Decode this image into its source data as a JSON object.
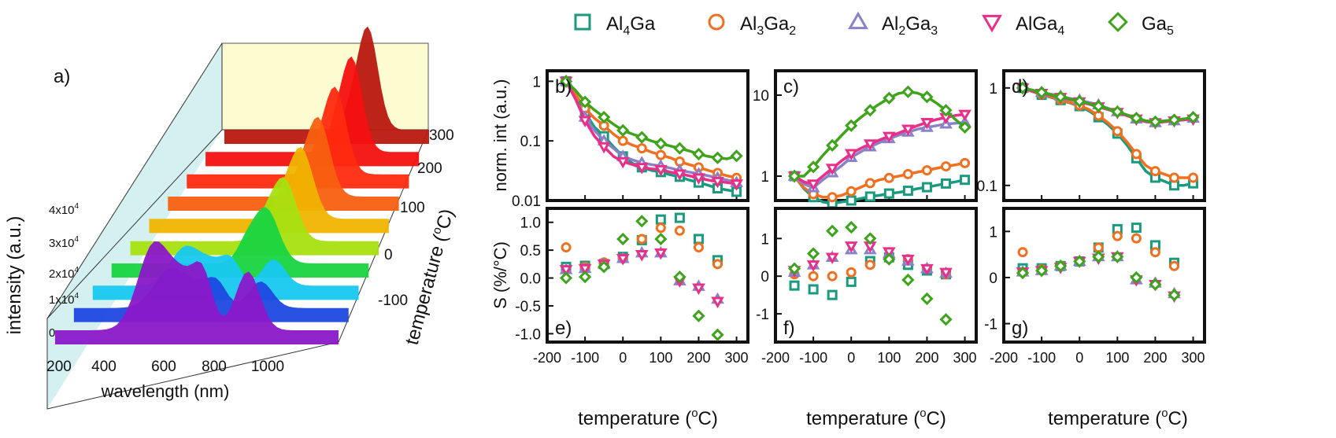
{
  "legend": {
    "placement": "top",
    "entries": [
      {
        "key": "Al4Ga",
        "base": "Al",
        "parts": [
          [
            "Al",
            ""
          ],
          [
            "4",
            "sub"
          ],
          [
            "Ga",
            ""
          ]
        ],
        "marker": "square",
        "color": "#1a9a7e"
      },
      {
        "key": "Al3Ga2",
        "parts": [
          [
            "Al",
            ""
          ],
          [
            "3",
            "sub"
          ],
          [
            "Ga",
            ""
          ],
          [
            "2",
            "sub"
          ]
        ],
        "marker": "circle",
        "color": "#f07020"
      },
      {
        "key": "Al2Ga3",
        "parts": [
          [
            "Al",
            ""
          ],
          [
            "2",
            "sub"
          ],
          [
            "Ga",
            ""
          ],
          [
            "3",
            "sub"
          ]
        ],
        "marker": "triangle-up",
        "color": "#8a82c8"
      },
      {
        "key": "AlGa4",
        "parts": [
          [
            "AlGa",
            ""
          ],
          [
            "4",
            "sub"
          ]
        ],
        "marker": "triangle-down",
        "color": "#e8308a"
      },
      {
        "key": "Ga5",
        "parts": [
          [
            "Ga",
            ""
          ],
          [
            "5",
            "sub"
          ]
        ],
        "marker": "diamond",
        "color": "#3ea41c"
      }
    ]
  },
  "panel_a": {
    "letter": "a)",
    "xlabel": "wavelength (nm)",
    "ylabel": "intensity (a.u.)",
    "zlabel_main": "temperature (",
    "zlabel_sup": "o",
    "zlabel_end": "C)",
    "xticks": [
      "200",
      "400",
      "600",
      "800",
      "1000"
    ],
    "yticks": [
      {
        "base": "0",
        "exp": ""
      },
      {
        "base": "1x10",
        "exp": "4"
      },
      {
        "base": "2x10",
        "exp": "4"
      },
      {
        "base": "3x10",
        "exp": "4"
      },
      {
        "base": "4x10",
        "exp": "4"
      }
    ],
    "zticks": [
      "-100",
      "0",
      "100",
      "200",
      "300"
    ]
  },
  "panels_top_ylabel": "norm. int (a.u.)",
  "panels_bottom_ylabel": "S (%/°C)",
  "xlabel": {
    "main": "temperature (",
    "sup": "o",
    "end": "C)"
  },
  "chart_data": [
    {
      "panel": "b)",
      "type": "line",
      "yscale": "log",
      "xlim": [
        -200,
        330
      ],
      "ylim": [
        0.01,
        1.5
      ],
      "yticks": [
        "0.01",
        "0.1",
        "1"
      ],
      "x": [
        -150,
        -125,
        -100,
        -75,
        -50,
        -25,
        0,
        25,
        50,
        75,
        100,
        125,
        150,
        175,
        200,
        225,
        250,
        275,
        300
      ],
      "series": [
        {
          "name": "Al4Ga",
          "values": [
            1.0,
            0.55,
            0.3,
            0.17,
            0.12,
            0.08,
            0.055,
            0.042,
            0.036,
            0.032,
            0.03,
            0.027,
            0.025,
            0.022,
            0.02,
            0.018,
            0.016,
            0.015,
            0.014
          ]
        },
        {
          "name": "Al3Ga2",
          "values": [
            1.0,
            0.6,
            0.35,
            0.24,
            0.18,
            0.13,
            0.1,
            0.085,
            0.075,
            0.065,
            0.058,
            0.052,
            0.045,
            0.04,
            0.036,
            0.032,
            0.029,
            0.026,
            0.024
          ]
        },
        {
          "name": "Al2Ga3",
          "values": [
            1.0,
            0.5,
            0.25,
            0.15,
            0.1,
            0.075,
            0.055,
            0.048,
            0.043,
            0.04,
            0.038,
            0.035,
            0.032,
            0.03,
            0.028,
            0.026,
            0.024,
            0.022,
            0.02
          ]
        },
        {
          "name": "AlGa4",
          "values": [
            1.0,
            0.5,
            0.22,
            0.12,
            0.08,
            0.055,
            0.045,
            0.04,
            0.036,
            0.034,
            0.033,
            0.03,
            0.028,
            0.026,
            0.024,
            0.022,
            0.021,
            0.02,
            0.019
          ]
        },
        {
          "name": "Ga5",
          "values": [
            1.0,
            0.7,
            0.45,
            0.33,
            0.25,
            0.19,
            0.15,
            0.13,
            0.115,
            0.1,
            0.09,
            0.082,
            0.075,
            0.068,
            0.06,
            0.055,
            0.052,
            0.05,
            0.056
          ]
        }
      ]
    },
    {
      "panel": "c)",
      "type": "line",
      "yscale": "log",
      "xlim": [
        -200,
        330
      ],
      "ylim": [
        0.5,
        20
      ],
      "yticks": [
        "1",
        "10"
      ],
      "x": [
        -150,
        -125,
        -100,
        -75,
        -50,
        -25,
        0,
        25,
        50,
        75,
        100,
        125,
        150,
        175,
        200,
        225,
        250,
        275,
        300
      ],
      "series": [
        {
          "name": "Al4Ga",
          "values": [
            1.0,
            0.7,
            0.55,
            0.48,
            0.46,
            0.48,
            0.5,
            0.53,
            0.56,
            0.58,
            0.61,
            0.63,
            0.66,
            0.7,
            0.73,
            0.77,
            0.81,
            0.85,
            0.9
          ]
        },
        {
          "name": "Al3Ga2",
          "values": [
            1.0,
            0.72,
            0.6,
            0.55,
            0.55,
            0.58,
            0.65,
            0.73,
            0.82,
            0.9,
            0.95,
            1.0,
            1.06,
            1.12,
            1.18,
            1.25,
            1.32,
            1.38,
            1.45
          ]
        },
        {
          "name": "Al2Ga3",
          "values": [
            1.0,
            0.8,
            0.72,
            0.9,
            1.1,
            1.35,
            1.7,
            2.0,
            2.3,
            2.6,
            2.9,
            3.2,
            3.5,
            3.8,
            4.0,
            4.2,
            4.4,
            4.5,
            4.6
          ]
        },
        {
          "name": "AlGa4",
          "values": [
            1.0,
            0.85,
            0.8,
            1.0,
            1.25,
            1.55,
            1.9,
            2.2,
            2.5,
            2.8,
            3.1,
            3.4,
            3.8,
            4.2,
            4.6,
            5.0,
            5.3,
            5.6,
            5.8
          ]
        },
        {
          "name": "Ga5",
          "values": [
            1.0,
            1.0,
            1.3,
            1.8,
            2.4,
            3.2,
            4.2,
            5.3,
            6.5,
            7.8,
            9.2,
            10.5,
            11.0,
            10.6,
            9.5,
            8.0,
            6.5,
            5.0,
            4.0
          ]
        }
      ]
    },
    {
      "panel": "d)",
      "type": "line",
      "yscale": "log",
      "xlim": [
        -200,
        330
      ],
      "ylim": [
        0.07,
        1.5
      ],
      "yticks": [
        "0.1",
        "1"
      ],
      "x": [
        -150,
        -125,
        -100,
        -75,
        -50,
        -25,
        0,
        25,
        50,
        75,
        100,
        125,
        150,
        175,
        200,
        225,
        250,
        275,
        300
      ],
      "series": [
        {
          "name": "Al4Ga",
          "values": [
            1.0,
            0.92,
            0.85,
            0.8,
            0.75,
            0.7,
            0.65,
            0.58,
            0.5,
            0.42,
            0.34,
            0.26,
            0.19,
            0.14,
            0.12,
            0.11,
            0.1,
            0.1,
            0.105
          ]
        },
        {
          "name": "Al3Ga2",
          "values": [
            1.0,
            0.92,
            0.86,
            0.81,
            0.76,
            0.71,
            0.66,
            0.6,
            0.52,
            0.44,
            0.36,
            0.28,
            0.21,
            0.16,
            0.14,
            0.13,
            0.12,
            0.12,
            0.12
          ]
        },
        {
          "name": "Al2Ga3",
          "values": [
            1.0,
            0.95,
            0.9,
            0.86,
            0.82,
            0.78,
            0.75,
            0.71,
            0.67,
            0.62,
            0.57,
            0.52,
            0.48,
            0.45,
            0.44,
            0.45,
            0.46,
            0.47,
            0.49
          ]
        },
        {
          "name": "AlGa4",
          "values": [
            1.0,
            0.93,
            0.88,
            0.84,
            0.8,
            0.76,
            0.72,
            0.68,
            0.64,
            0.6,
            0.56,
            0.52,
            0.48,
            0.45,
            0.44,
            0.45,
            0.46,
            0.47,
            0.48
          ]
        },
        {
          "name": "Ga5",
          "values": [
            1.0,
            0.95,
            0.9,
            0.85,
            0.81,
            0.77,
            0.73,
            0.69,
            0.65,
            0.61,
            0.57,
            0.53,
            0.49,
            0.46,
            0.45,
            0.46,
            0.47,
            0.48,
            0.5
          ]
        }
      ]
    },
    {
      "panel": "e)",
      "type": "scatter",
      "xlim": [
        -200,
        330
      ],
      "ylim": [
        -1.15,
        1.25
      ],
      "yticks": [
        "-1.0",
        "-0.5",
        "0.0",
        "0.5",
        "1.0"
      ],
      "x": [
        -150,
        -100,
        -50,
        0,
        50,
        100,
        150,
        200,
        250
      ],
      "series": [
        {
          "name": "Al4Ga",
          "values": [
            0.2,
            0.22,
            0.25,
            0.38,
            0.68,
            1.05,
            1.08,
            0.7,
            0.32
          ]
        },
        {
          "name": "Al3Ga2",
          "values": [
            0.55,
            0.2,
            0.28,
            0.35,
            0.7,
            0.9,
            0.85,
            0.55,
            0.25
          ]
        },
        {
          "name": "Al2Ga3",
          "values": [
            0.15,
            0.17,
            0.25,
            0.35,
            0.45,
            0.45,
            -0.05,
            -0.15,
            -0.38
          ]
        },
        {
          "name": "AlGa4",
          "values": [
            0.15,
            0.17,
            0.25,
            0.35,
            0.42,
            0.45,
            -0.05,
            -0.18,
            -0.42
          ]
        },
        {
          "name": "Ga5",
          "values": [
            0.0,
            0.02,
            0.2,
            0.7,
            1.02,
            0.7,
            0.02,
            -0.68,
            -1.02
          ]
        }
      ]
    },
    {
      "panel": "f)",
      "type": "scatter",
      "xlim": [
        -200,
        330
      ],
      "ylim": [
        -1.75,
        1.8
      ],
      "yticks": [
        "-1",
        "0",
        "1"
      ],
      "x": [
        -150,
        -125,
        -100,
        -75,
        -50,
        -25,
        0,
        25,
        50,
        75,
        100,
        150,
        200,
        250
      ],
      "series": [
        {
          "name": "Al4Ga",
          "values": [
            -0.25,
            null,
            -0.35,
            null,
            -0.5,
            null,
            -0.15,
            null,
            0.4,
            null,
            0.5,
            0.3,
            0.15,
            0.05
          ]
        },
        {
          "name": "Al3Ga2",
          "values": [
            0.05,
            null,
            0.0,
            null,
            0.0,
            null,
            0.1,
            null,
            0.3,
            null,
            0.5,
            0.45,
            0.2,
            0.05
          ]
        },
        {
          "name": "Al2Ga3",
          "values": [
            0.1,
            null,
            0.3,
            null,
            0.5,
            null,
            0.7,
            null,
            0.7,
            null,
            0.6,
            0.4,
            0.2,
            0.08
          ]
        },
        {
          "name": "AlGa4",
          "values": [
            0.15,
            null,
            0.3,
            null,
            0.5,
            null,
            0.8,
            null,
            0.8,
            null,
            0.65,
            0.45,
            0.2,
            0.1
          ]
        },
        {
          "name": "Ga5",
          "values": [
            0.2,
            null,
            0.6,
            null,
            1.2,
            null,
            1.3,
            null,
            1.0,
            null,
            0.45,
            -0.1,
            -0.6,
            -1.15
          ]
        }
      ]
    },
    {
      "panel": "g)",
      "type": "scatter",
      "xlim": [
        -200,
        330
      ],
      "ylim": [
        -1.4,
        1.5
      ],
      "yticks": [
        "-1",
        "0",
        "1"
      ],
      "x": [
        -150,
        -100,
        -50,
        0,
        50,
        100,
        150,
        200,
        250
      ],
      "series": [
        {
          "name": "Al4Ga",
          "values": [
            0.2,
            0.2,
            0.25,
            0.35,
            0.65,
            1.05,
            1.08,
            0.7,
            0.32
          ]
        },
        {
          "name": "Al3Ga2",
          "values": [
            0.55,
            0.18,
            0.25,
            0.35,
            0.65,
            0.9,
            0.85,
            0.55,
            0.25
          ]
        },
        {
          "name": "Al2Ga3",
          "values": [
            0.12,
            0.15,
            0.25,
            0.35,
            0.45,
            0.45,
            -0.05,
            -0.12,
            -0.35
          ]
        },
        {
          "name": "AlGa4",
          "values": [
            0.12,
            0.15,
            0.22,
            0.35,
            0.42,
            0.45,
            -0.05,
            -0.15,
            -0.4
          ]
        },
        {
          "name": "Ga5",
          "values": [
            0.1,
            0.15,
            0.25,
            0.35,
            0.45,
            0.45,
            0.0,
            -0.15,
            -0.38
          ]
        }
      ]
    }
  ],
  "xticks": [
    "-200",
    "-100",
    "0",
    "100",
    "200",
    "300"
  ]
}
